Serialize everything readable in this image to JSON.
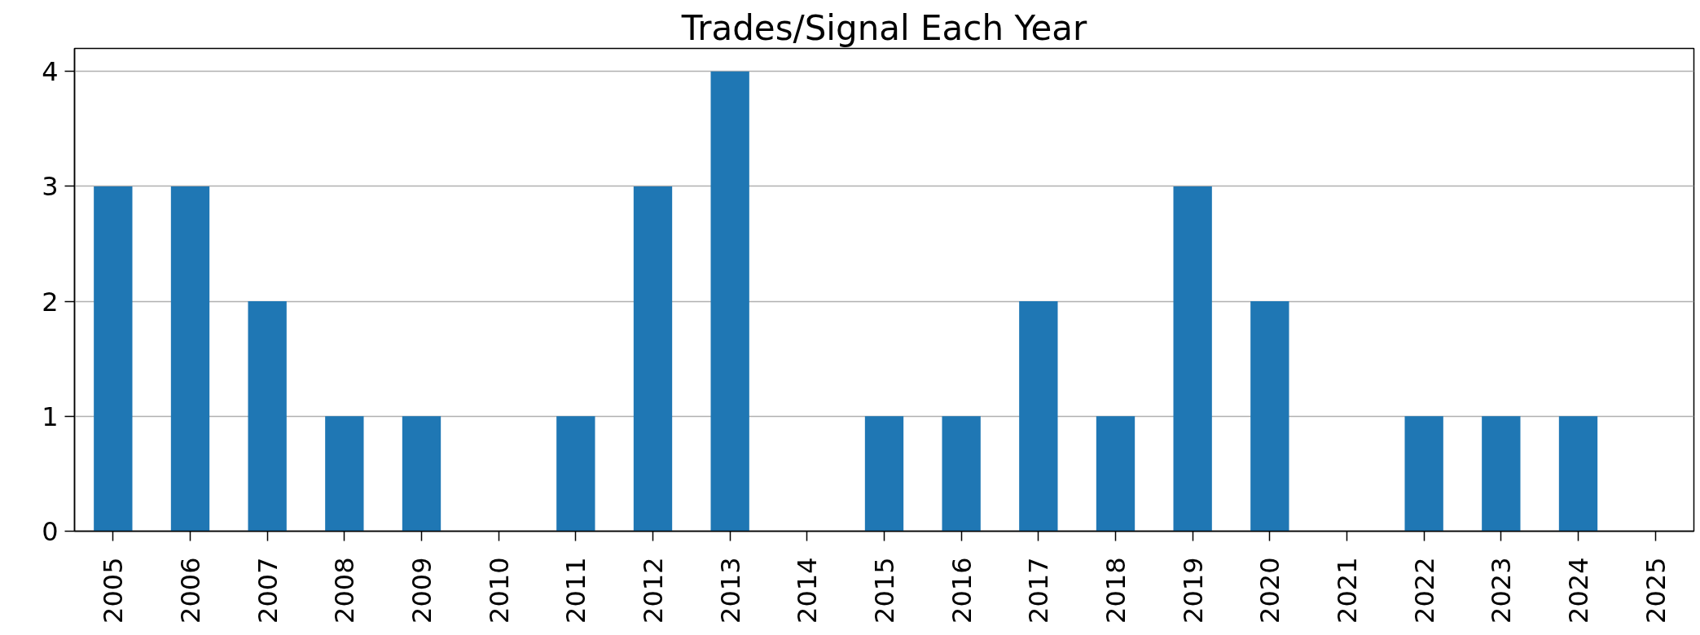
{
  "chart_data": {
    "type": "bar",
    "title": "Trades/Signal Each Year",
    "categories": [
      "2005",
      "2006",
      "2007",
      "2008",
      "2009",
      "2010",
      "2011",
      "2012",
      "2013",
      "2014",
      "2015",
      "2016",
      "2017",
      "2018",
      "2019",
      "2020",
      "2021",
      "2022",
      "2023",
      "2024",
      "2025"
    ],
    "values": [
      3,
      3,
      2,
      1,
      1,
      0,
      1,
      3,
      4,
      0,
      1,
      1,
      2,
      1,
      3,
      2,
      0,
      1,
      1,
      1,
      0
    ],
    "color": "#1f77b4",
    "ylim": [
      0,
      4.2
    ],
    "yticks": [
      0,
      1,
      2,
      3,
      4
    ],
    "grid": "y"
  }
}
